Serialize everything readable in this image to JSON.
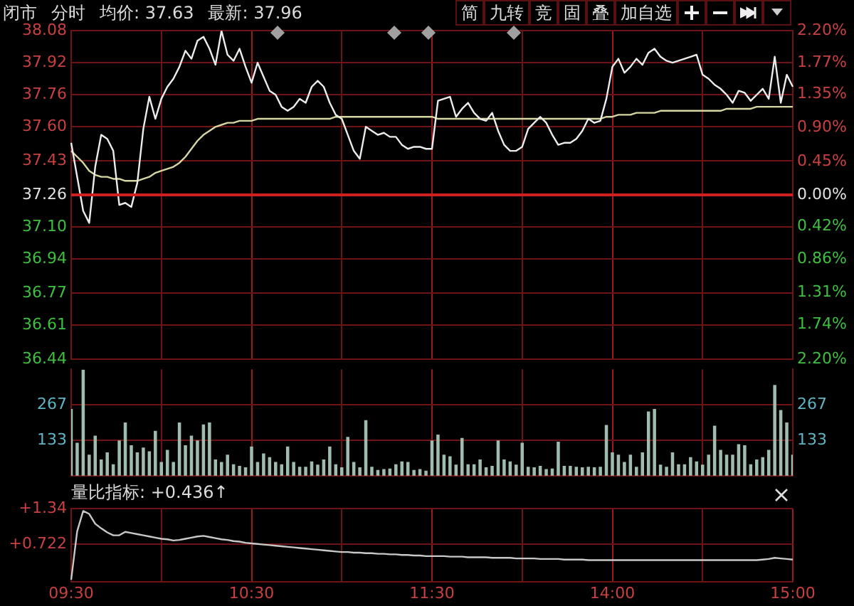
{
  "chart_data": [
    {
      "type": "line",
      "annotations": [
        "闭市",
        "分时",
        "均价: 37.63",
        "最新: 37.96",
        "简",
        "九转",
        "竞",
        "固",
        "叠",
        "加自选"
      ],
      "categories": [
        null,
        null,
        null,
        null,
        null,
        null,
        null,
        null,
        null,
        null,
        null,
        null,
        null,
        null,
        null,
        null,
        null,
        null,
        null,
        null,
        null,
        null,
        null,
        null,
        null,
        null,
        null,
        null,
        null,
        null,
        null,
        null,
        null,
        null,
        null,
        null,
        null,
        null,
        null,
        null,
        null,
        null,
        null,
        null,
        null,
        null,
        null,
        null,
        null,
        null,
        null,
        null,
        null,
        null,
        null,
        null,
        null,
        null,
        null,
        null,
        null,
        null,
        null,
        null,
        null,
        null,
        null,
        null,
        null,
        null,
        null,
        null,
        null,
        null,
        null,
        null,
        null,
        null,
        null,
        null,
        null,
        null,
        null,
        null,
        null,
        null,
        null,
        null,
        null,
        null,
        null,
        null,
        null,
        null,
        null,
        null,
        null,
        null,
        null,
        null,
        null,
        null,
        null,
        null,
        null,
        null,
        null,
        null,
        null,
        null,
        null,
        null,
        null,
        null,
        null,
        null,
        null,
        null,
        null,
        null,
        null
      ],
      "ylim": [
        36.44,
        38.08
      ],
      "yticks": [
        38.08,
        37.92,
        37.76,
        {
          "value": 37.6,
          "label": "37.60"
        },
        37.43,
        37.26,
        {
          "value": 37.1,
          "label": "37.10"
        },
        36.94,
        36.77,
        36.61,
        36.44
      ],
      "y2lim": [
        -2.2,
        2.2
      ],
      "y2ticks": [
        {
          "value": 2.2,
          "label": "2.20%"
        },
        {
          "value": 1.77,
          "label": "1.77%"
        },
        {
          "value": 1.35,
          "label": "1.35%"
        },
        {
          "value": 0.9,
          "label": "0.90%"
        },
        {
          "value": 0.45,
          "label": "0.45%"
        },
        {
          "value": 0,
          "label": "0.00%"
        },
        {
          "value": -0.42,
          "label": "0.42%"
        },
        {
          "value": -0.86,
          "label": "0.86%"
        },
        {
          "value": -1.31,
          "label": "1.31%"
        },
        {
          "value": -1.74,
          "label": "1.74%"
        },
        {
          "value": -2.2,
          "label": "2.20%"
        }
      ],
      "ref_lines": [
        {
          "axis": "y",
          "value": 37.26,
          "color": "#d02020"
        }
      ],
      "grid": true,
      "marker": "none",
      "line_style": "solid",
      "tick_labels": "y",
      "series": [
        {
          "color": "#ececec",
          "values": [
            37.52,
            37.35,
            37.18,
            37.12,
            37.4,
            37.56,
            37.54,
            37.48,
            37.21,
            37.22,
            37.2,
            37.32,
            37.59,
            37.75,
            37.64,
            37.74,
            37.8,
            37.84,
            37.9,
            37.98,
            37.94,
            38.03,
            38.05,
            37.99,
            37.91,
            38.08,
            37.96,
            37.93,
            37.99,
            37.9,
            37.82,
            37.92,
            37.85,
            37.78,
            37.76,
            37.7,
            37.68,
            37.7,
            37.74,
            37.72,
            37.8,
            37.83,
            37.8,
            37.72,
            37.66,
            37.64,
            37.56,
            37.48,
            37.44,
            37.6,
            37.58,
            37.56,
            37.57,
            37.55,
            37.55,
            37.51,
            37.49,
            37.5,
            37.5,
            37.49,
            37.49,
            37.73,
            37.74,
            37.75,
            37.65,
            37.69,
            37.72,
            37.67,
            37.64,
            37.63,
            37.67,
            37.58,
            37.51,
            37.48,
            37.48,
            37.5,
            37.59,
            37.62,
            37.65,
            37.62,
            37.56,
            37.51,
            37.52,
            37.52,
            37.54,
            37.58,
            37.64,
            37.62,
            37.63,
            37.74,
            37.9,
            37.94,
            37.87,
            37.9,
            37.94,
            37.91,
            37.97,
            37.99,
            37.95,
            37.93,
            37.92,
            37.93,
            37.94,
            37.95,
            37.96,
            37.86,
            37.84,
            37.81,
            37.79,
            37.76,
            37.72,
            37.78,
            37.77,
            37.73,
            37.76,
            37.79,
            37.74,
            37.95,
            37.72,
            37.86,
            37.8
          ]
        },
        {
          "color": "#d6d6a2",
          "values": [
            37.48,
            37.45,
            37.42,
            37.38,
            37.36,
            37.35,
            37.35,
            37.34,
            37.34,
            37.33,
            37.33,
            37.33,
            37.34,
            37.35,
            37.37,
            37.38,
            37.39,
            37.4,
            37.42,
            37.45,
            37.49,
            37.53,
            37.56,
            37.58,
            37.6,
            37.61,
            37.62,
            37.62,
            37.63,
            37.63,
            37.63,
            37.64,
            37.64,
            37.64,
            37.64,
            37.64,
            37.64,
            37.64,
            37.64,
            37.64,
            37.64,
            37.64,
            37.64,
            37.64,
            37.65,
            37.65,
            37.65,
            37.65,
            37.65,
            37.65,
            37.65,
            37.65,
            37.65,
            37.65,
            37.65,
            37.65,
            37.65,
            37.65,
            37.65,
            37.65,
            37.65,
            37.64,
            37.64,
            37.64,
            37.64,
            37.64,
            37.64,
            37.64,
            37.64,
            37.64,
            37.64,
            37.64,
            37.64,
            37.64,
            37.64,
            37.64,
            37.64,
            37.64,
            37.64,
            37.64,
            37.64,
            37.64,
            37.64,
            37.64,
            37.64,
            37.64,
            37.64,
            37.64,
            37.64,
            37.65,
            37.65,
            37.66,
            37.66,
            37.66,
            37.67,
            37.67,
            37.67,
            37.67,
            37.68,
            37.68,
            37.68,
            37.68,
            37.68,
            37.68,
            37.68,
            37.68,
            37.68,
            37.68,
            37.68,
            37.69,
            37.69,
            37.69,
            37.69,
            37.69,
            37.7,
            37.7,
            37.7,
            37.7,
            37.7,
            37.7,
            37.7
          ]
        }
      ]
    },
    {
      "type": "bar",
      "categories": [
        null,
        null,
        null,
        null,
        null,
        null,
        null,
        null,
        null,
        null,
        null,
        null,
        null,
        null,
        null,
        null,
        null,
        null,
        null,
        null,
        null,
        null,
        null,
        null,
        null,
        null,
        null,
        null,
        null,
        null,
        null,
        null,
        null,
        null,
        null,
        null,
        null,
        null,
        null,
        null,
        null,
        null,
        null,
        null,
        null,
        null,
        null,
        null,
        null,
        null,
        null,
        null,
        null,
        null,
        null,
        null,
        null,
        null,
        null,
        null,
        null,
        null,
        null,
        null,
        null,
        null,
        null,
        null,
        null,
        null,
        null,
        null,
        null,
        null,
        null,
        null,
        null,
        null,
        null,
        null,
        null,
        null,
        null,
        null,
        null,
        null,
        null,
        null,
        null,
        null,
        null,
        null,
        null,
        null,
        null,
        null,
        null,
        null,
        null,
        null,
        null,
        null,
        null,
        null,
        null,
        null,
        null,
        null,
        null,
        null,
        null,
        null,
        null,
        null,
        null,
        null,
        null,
        null,
        null,
        null,
        null
      ],
      "ylim": [
        0,
        400
      ],
      "yticks": [
        133,
        267
      ],
      "y2lim": [
        0,
        400
      ],
      "y2ticks": [
        133,
        267
      ],
      "grid": true,
      "tick_labels": "y",
      "series": [
        {
          "color": "#9fbcae",
          "values": [
            249,
            122,
            397,
            77,
            149,
            59,
            86,
            41,
            131,
            198,
            113,
            86,
            104,
            90,
            167,
            50,
            95,
            50,
            198,
            113,
            149,
            131,
            191,
            198,
            59,
            50,
            77,
            41,
            35,
            30,
            108,
            50,
            82,
            68,
            50,
            41,
            108,
            50,
            32,
            32,
            52,
            40,
            59,
            108,
            41,
            30,
            144,
            50,
            30,
            207,
            32,
            20,
            23,
            25,
            41,
            52,
            50,
            20,
            23,
            17,
            131,
            153,
            77,
            71,
            40,
            140,
            41,
            41,
            59,
            30,
            35,
            131,
            59,
            52,
            40,
            122,
            32,
            30,
            35,
            23,
            25,
            126,
            35,
            35,
            32,
            30,
            32,
            30,
            32,
            189,
            86,
            77,
            50,
            77,
            32,
            86,
            240,
            249,
            40,
            32,
            86,
            41,
            41,
            68,
            52,
            40,
            77,
            186,
            95,
            77,
            77,
            117,
            113,
            41,
            59,
            68,
            95,
            339,
            245,
            198,
            77
          ]
        }
      ]
    },
    {
      "type": "line",
      "title": "量比指标: +0.436↑",
      "categories": [
        "09:30",
        null,
        null,
        null,
        null,
        null,
        null,
        null,
        null,
        null,
        null,
        null,
        null,
        null,
        null,
        null,
        null,
        null,
        null,
        null,
        null,
        null,
        null,
        null,
        null,
        null,
        null,
        null,
        null,
        null,
        "10:30",
        null,
        null,
        null,
        null,
        null,
        null,
        null,
        null,
        null,
        null,
        null,
        null,
        null,
        null,
        null,
        null,
        null,
        null,
        null,
        null,
        null,
        null,
        null,
        null,
        null,
        null,
        null,
        null,
        null,
        "11:30",
        null,
        null,
        null,
        null,
        null,
        null,
        null,
        null,
        null,
        null,
        null,
        null,
        null,
        null,
        null,
        null,
        null,
        null,
        null,
        null,
        null,
        null,
        null,
        null,
        null,
        null,
        null,
        null,
        null,
        "14:00",
        null,
        null,
        null,
        null,
        null,
        null,
        null,
        null,
        null,
        null,
        null,
        null,
        null,
        null,
        null,
        null,
        null,
        null,
        null,
        null,
        null,
        null,
        null,
        null,
        null,
        null,
        null,
        null,
        null,
        "15:00"
      ],
      "ylim": [
        0.08,
        1.34
      ],
      "yticks": [
        {
          "value": 1.34,
          "label": "+1.34"
        },
        {
          "value": 0.722,
          "label": "+0.722"
        }
      ],
      "grid": true,
      "marker": "none",
      "line_style": "solid",
      "series": [
        {
          "color": "#c8c8c8",
          "values": [
            0.11,
            0.95,
            1.3,
            1.25,
            1.08,
            1.0,
            0.93,
            0.88,
            0.88,
            0.94,
            0.92,
            0.9,
            0.88,
            0.86,
            0.84,
            0.82,
            0.81,
            0.79,
            0.8,
            0.82,
            0.84,
            0.86,
            0.87,
            0.85,
            0.83,
            0.81,
            0.8,
            0.78,
            0.77,
            0.75,
            0.74,
            0.73,
            0.72,
            0.71,
            0.7,
            0.69,
            0.68,
            0.67,
            0.66,
            0.65,
            0.64,
            0.63,
            0.62,
            0.61,
            0.6,
            0.59,
            0.59,
            0.58,
            0.58,
            0.57,
            0.57,
            0.56,
            0.56,
            0.55,
            0.55,
            0.54,
            0.54,
            0.53,
            0.53,
            0.52,
            0.52,
            0.52,
            0.52,
            0.51,
            0.51,
            0.51,
            0.5,
            0.5,
            0.5,
            0.5,
            0.49,
            0.49,
            0.49,
            0.49,
            0.48,
            0.48,
            0.48,
            0.48,
            0.47,
            0.47,
            0.47,
            0.47,
            0.46,
            0.46,
            0.46,
            0.46,
            0.45,
            0.45,
            0.45,
            0.45,
            0.45,
            0.45,
            0.45,
            0.45,
            0.45,
            0.45,
            0.45,
            0.45,
            0.45,
            0.45,
            0.45,
            0.45,
            0.45,
            0.45,
            0.45,
            0.45,
            0.45,
            0.45,
            0.45,
            0.45,
            0.45,
            0.45,
            0.45,
            0.45,
            0.45,
            0.46,
            0.47,
            0.49,
            0.48,
            0.47,
            0.46
          ]
        }
      ]
    }
  ]
}
